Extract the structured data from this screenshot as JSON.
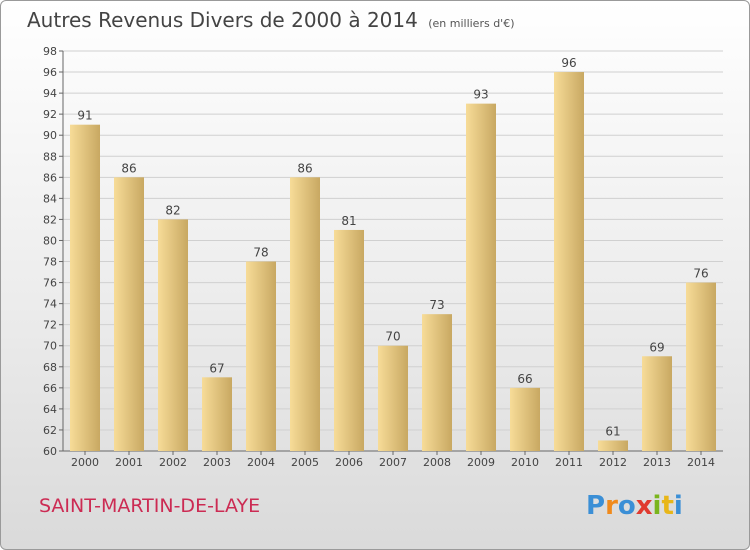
{
  "title": "Autres Revenus Divers de 2000 à 2014",
  "subtitle": "(en milliers d'€)",
  "commune": "SAINT-MARTIN-DE-LAYE",
  "logo": {
    "letters": [
      "P",
      "r",
      "o",
      "x",
      "i",
      "t",
      "i"
    ],
    "colors": [
      "#3b8fd6",
      "#f08a1c",
      "#3b8fd6",
      "#e03a2f",
      "#7ab51d",
      "#e8b619",
      "#3b8fd6"
    ]
  },
  "colors": {
    "bar_light": "#f7dc98",
    "bar_dark": "#c8a862",
    "axis": "#666666",
    "grid": "#d0d0d0",
    "title": "#444444",
    "commune": "#cc2b53"
  },
  "chart_data": {
    "type": "bar",
    "categories": [
      "2000",
      "2001",
      "2002",
      "2003",
      "2004",
      "2005",
      "2006",
      "2007",
      "2008",
      "2009",
      "2010",
      "2011",
      "2012",
      "2013",
      "2014"
    ],
    "values": [
      91,
      86,
      82,
      67,
      78,
      86,
      81,
      70,
      73,
      93,
      66,
      96,
      61,
      69,
      76
    ],
    "ylim": [
      60,
      98
    ],
    "yticks": [
      60,
      62,
      64,
      66,
      68,
      70,
      72,
      74,
      76,
      78,
      80,
      82,
      84,
      86,
      88,
      90,
      92,
      94,
      96,
      98
    ],
    "grid": true,
    "xlabel": "",
    "ylabel": ""
  }
}
